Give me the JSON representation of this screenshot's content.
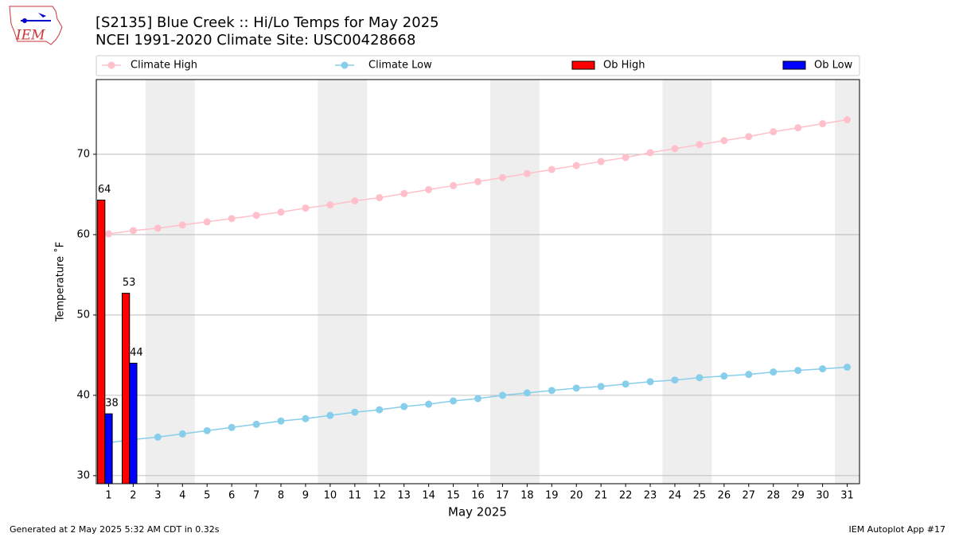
{
  "chart_data": {
    "type": "bar_line",
    "logo": "IEM",
    "title": "[S2135] Blue Creek :: Hi/Lo Temps for May 2025",
    "subtitle": "NCEI 1991-2020 Climate Site: USC00428668",
    "ylabel": "Temperature ˚F",
    "xlabel": "May 2025",
    "footer_left": "Generated at 2 May 2025 5:32 AM CDT in 0.32s",
    "footer_right": "IEM Autoplot App #17",
    "x": [
      1,
      2,
      3,
      4,
      5,
      6,
      7,
      8,
      9,
      10,
      11,
      12,
      13,
      14,
      15,
      16,
      17,
      18,
      19,
      20,
      21,
      22,
      23,
      24,
      25,
      26,
      27,
      28,
      29,
      30,
      31
    ],
    "xlim": [
      0.5,
      31.5
    ],
    "xticks": [
      1,
      2,
      3,
      4,
      5,
      6,
      7,
      8,
      9,
      10,
      11,
      12,
      13,
      14,
      15,
      16,
      17,
      18,
      19,
      20,
      21,
      22,
      23,
      24,
      25,
      26,
      27,
      28,
      29,
      30,
      31
    ],
    "ylim": [
      29,
      79.3
    ],
    "yticks": [
      30,
      40,
      50,
      60,
      70
    ],
    "grid": true,
    "shaded_days": [
      3,
      4,
      10,
      11,
      17,
      18,
      24,
      25,
      31
    ],
    "shade_color": "#eeeeee",
    "series": [
      {
        "name": "Climate High",
        "kind": "line",
        "color": "pink",
        "values": [
          60.1,
          60.5,
          60.8,
          61.2,
          61.6,
          62.0,
          62.4,
          62.8,
          63.3,
          63.7,
          64.2,
          64.6,
          65.1,
          65.6,
          66.1,
          66.6,
          67.1,
          67.6,
          68.1,
          68.6,
          69.1,
          69.6,
          70.2,
          70.7,
          71.2,
          71.7,
          72.2,
          72.8,
          73.3,
          73.8,
          74.3
        ]
      },
      {
        "name": "Climate Low",
        "kind": "line",
        "color": "skyblue",
        "values": [
          34.1,
          34.5,
          34.8,
          35.2,
          35.6,
          36.0,
          36.4,
          36.8,
          37.1,
          37.5,
          37.9,
          38.2,
          38.6,
          38.9,
          39.3,
          39.6,
          40.0,
          40.3,
          40.6,
          40.9,
          41.1,
          41.4,
          41.7,
          41.9,
          42.2,
          42.4,
          42.6,
          42.9,
          43.1,
          43.3,
          43.5
        ]
      },
      {
        "name": "Ob High",
        "kind": "bar",
        "color": "#ff0000",
        "values": [
          64.3,
          52.7,
          null,
          null,
          null,
          null,
          null,
          null,
          null,
          null,
          null,
          null,
          null,
          null,
          null,
          null,
          null,
          null,
          null,
          null,
          null,
          null,
          null,
          null,
          null,
          null,
          null,
          null,
          null,
          null,
          null
        ],
        "value_labels": [
          "64",
          "53",
          null,
          null,
          null,
          null,
          null,
          null,
          null,
          null,
          null,
          null,
          null,
          null,
          null,
          null,
          null,
          null,
          null,
          null,
          null,
          null,
          null,
          null,
          null,
          null,
          null,
          null,
          null,
          null,
          null
        ]
      },
      {
        "name": "Ob Low",
        "kind": "bar",
        "color": "#0000ff",
        "values": [
          37.7,
          44,
          null,
          null,
          null,
          null,
          null,
          null,
          null,
          null,
          null,
          null,
          null,
          null,
          null,
          null,
          null,
          null,
          null,
          null,
          null,
          null,
          null,
          null,
          null,
          null,
          null,
          null,
          null,
          null,
          null
        ],
        "value_labels": [
          "38",
          "44",
          null,
          null,
          null,
          null,
          null,
          null,
          null,
          null,
          null,
          null,
          null,
          null,
          null,
          null,
          null,
          null,
          null,
          null,
          null,
          null,
          null,
          null,
          null,
          null,
          null,
          null,
          null,
          null,
          null
        ]
      }
    ]
  }
}
